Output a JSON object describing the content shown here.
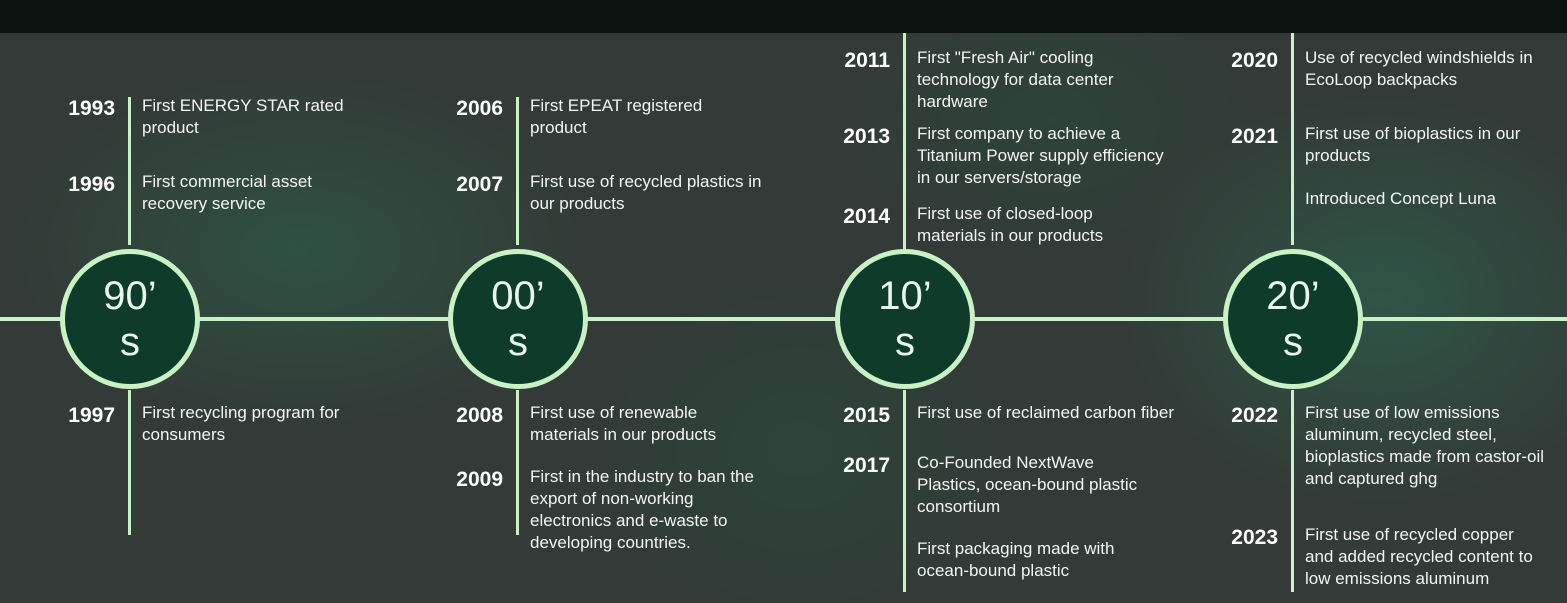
{
  "decades": [
    {
      "label": [
        "90’",
        "s"
      ],
      "top": [
        {
          "year": "1993",
          "lines": [
            "First ENERGY STAR rated",
            "product"
          ]
        },
        {
          "year": "1996",
          "lines": [
            "First commercial asset",
            "recovery service"
          ]
        }
      ],
      "bottom": [
        {
          "year": "1997",
          "lines": [
            "First recycling program for",
            "consumers"
          ]
        }
      ]
    },
    {
      "label": [
        "00’",
        "s"
      ],
      "top": [
        {
          "year": "2006",
          "lines": [
            "First EPEAT registered",
            "product"
          ]
        },
        {
          "year": "2007",
          "lines": [
            "First use of recycled plastics in",
            "our products"
          ]
        }
      ],
      "bottom": [
        {
          "year": "2008",
          "lines": [
            "First use of renewable",
            "materials in our products"
          ]
        },
        {
          "year": "2009",
          "lines": [
            "First in the industry to ban the",
            "export of non-working",
            "electronics and e-waste to",
            "developing countries."
          ]
        }
      ]
    },
    {
      "label": [
        "10’",
        "s"
      ],
      "top": [
        {
          "year": "2011",
          "lines": [
            "First \"Fresh Air\" cooling",
            "technology for data center",
            "hardware"
          ]
        },
        {
          "year": "2013",
          "lines": [
            "First company to achieve a",
            "Titanium Power supply efficiency",
            "in our servers/storage"
          ]
        },
        {
          "year": "2014",
          "lines": [
            "First use of closed-loop",
            "materials in our products"
          ]
        }
      ],
      "bottom": [
        {
          "year": "2015",
          "lines": [
            "First use of reclaimed carbon fiber"
          ]
        },
        {
          "year": "2017",
          "lines": [
            "Co-Founded NextWave",
            "Plastics, ocean-bound plastic",
            "consortium"
          ]
        },
        {
          "lines": [
            "First packaging made with",
            "ocean-bound plastic"
          ]
        }
      ]
    },
    {
      "label": [
        "20’",
        "s"
      ],
      "top": [
        {
          "year": "2020",
          "lines": [
            "Use of recycled windshields in",
            "EcoLoop backpacks"
          ]
        },
        {
          "year": "2021",
          "lines": [
            "First use of bioplastics in our",
            "products"
          ]
        },
        {
          "lines": [
            "Introduced Concept Luna"
          ]
        }
      ],
      "bottom": [
        {
          "year": "2022",
          "lines": [
            "First use of low emissions",
            "aluminum, recycled steel,",
            "bioplastics made from castor-oil",
            "and captured ghg"
          ]
        },
        {
          "year": "2023",
          "lines": [
            "First use of recycled copper",
            "and added recycled content to",
            "low emissions aluminum"
          ]
        }
      ]
    }
  ]
}
